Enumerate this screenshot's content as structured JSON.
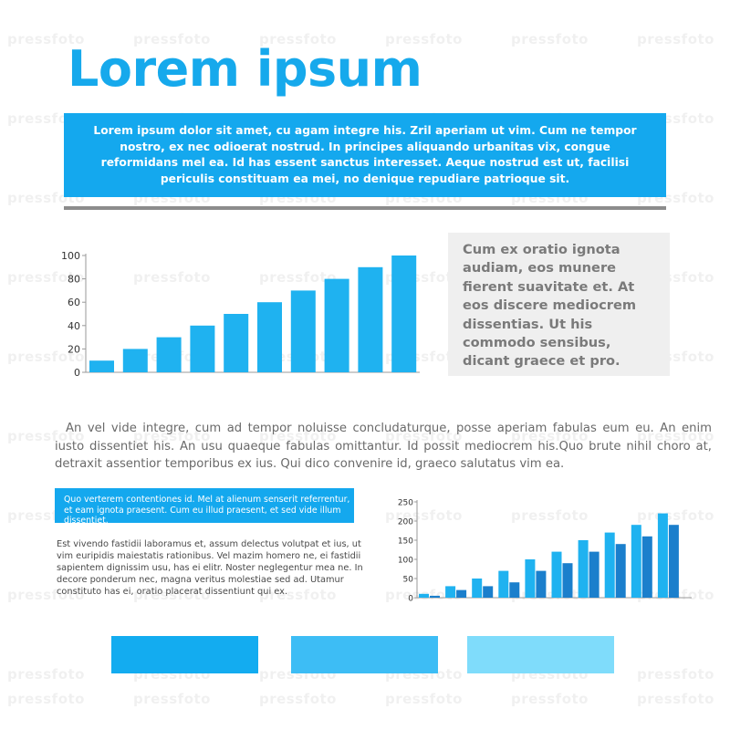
{
  "title": "Lorem ipsum",
  "banner_text": "Lorem ipsum dolor sit amet, cu agam integre his. Zril aperiam ut vim. Cum ne tempor nostro, ex nec odioerat nostrud. In principes aliquando urbanitas vix, congue reformidans mel ea. Id has essent sanctus interesset. Aeque nostrud est ut, facilisi periculis constituam ea mei, no denique repudiare patrioque sit.",
  "side_box_text": "Cum ex oratio ignota audiam, eos munere fierent suavitate et. At eos discere mediocrem dissentias. Ut his commodo sensibus, dicant graece et pro.",
  "paragraph": "An vel vide integre, cum ad tempor noluisse concludaturque, posse aperiam fabulas eum eu. An enim iusto dissentiet his. An usu quaeque fabulas omittantur. Id possit mediocrem his.Quo brute nihil choro at, detraxit assentior temporibus ex ius. Qui dico convenire id, graeco salutatus vim ea.",
  "small_banner_text": "Quo verterem contentiones id. Mel at alienum senserit referrentur, et eam ignota praesent. Cum eu illud praesent, et sed vide illum dissentiet.",
  "small_text": "Est vivendo fastidii laboramus et, assum delectus volutpat et ius, ut vim euripidis maiestatis rationibus. Vel mazim homero ne, ei fastidii sapientem dignissim usu, has ei elitr. Noster neglegentur mea ne. In decore ponderum nec, magna veritus molestiae sed ad. Utamur constituto has ei, oratio placerat dissentiunt qui ex.",
  "watermark": "pressfoto",
  "colors": {
    "accent": "#14a8ee",
    "bar_light": "#1fb2f0",
    "bar_dark": "#1b7fcc",
    "swatch_1": "#13acf0",
    "swatch_2": "#3dbdf5",
    "swatch_3": "#7fdcfb"
  },
  "chart_data": [
    {
      "type": "bar",
      "title": "",
      "xlabel": "",
      "ylabel": "",
      "ylim": [
        0,
        100
      ],
      "yticks": [
        0,
        20,
        40,
        60,
        80,
        100
      ],
      "values": [
        10,
        20,
        30,
        40,
        50,
        60,
        70,
        80,
        90,
        100
      ],
      "grid": false
    },
    {
      "type": "bar",
      "title": "",
      "xlabel": "",
      "ylabel": "",
      "ylim": [
        0,
        250
      ],
      "yticks": [
        0,
        50,
        100,
        150,
        200,
        250
      ],
      "series": [
        {
          "values": [
            10,
            30,
            50,
            70,
            100,
            120,
            150,
            170,
            190,
            220
          ]
        },
        {
          "values": [
            5,
            20,
            30,
            40,
            70,
            90,
            120,
            140,
            160,
            190
          ]
        }
      ],
      "grid": false
    }
  ]
}
